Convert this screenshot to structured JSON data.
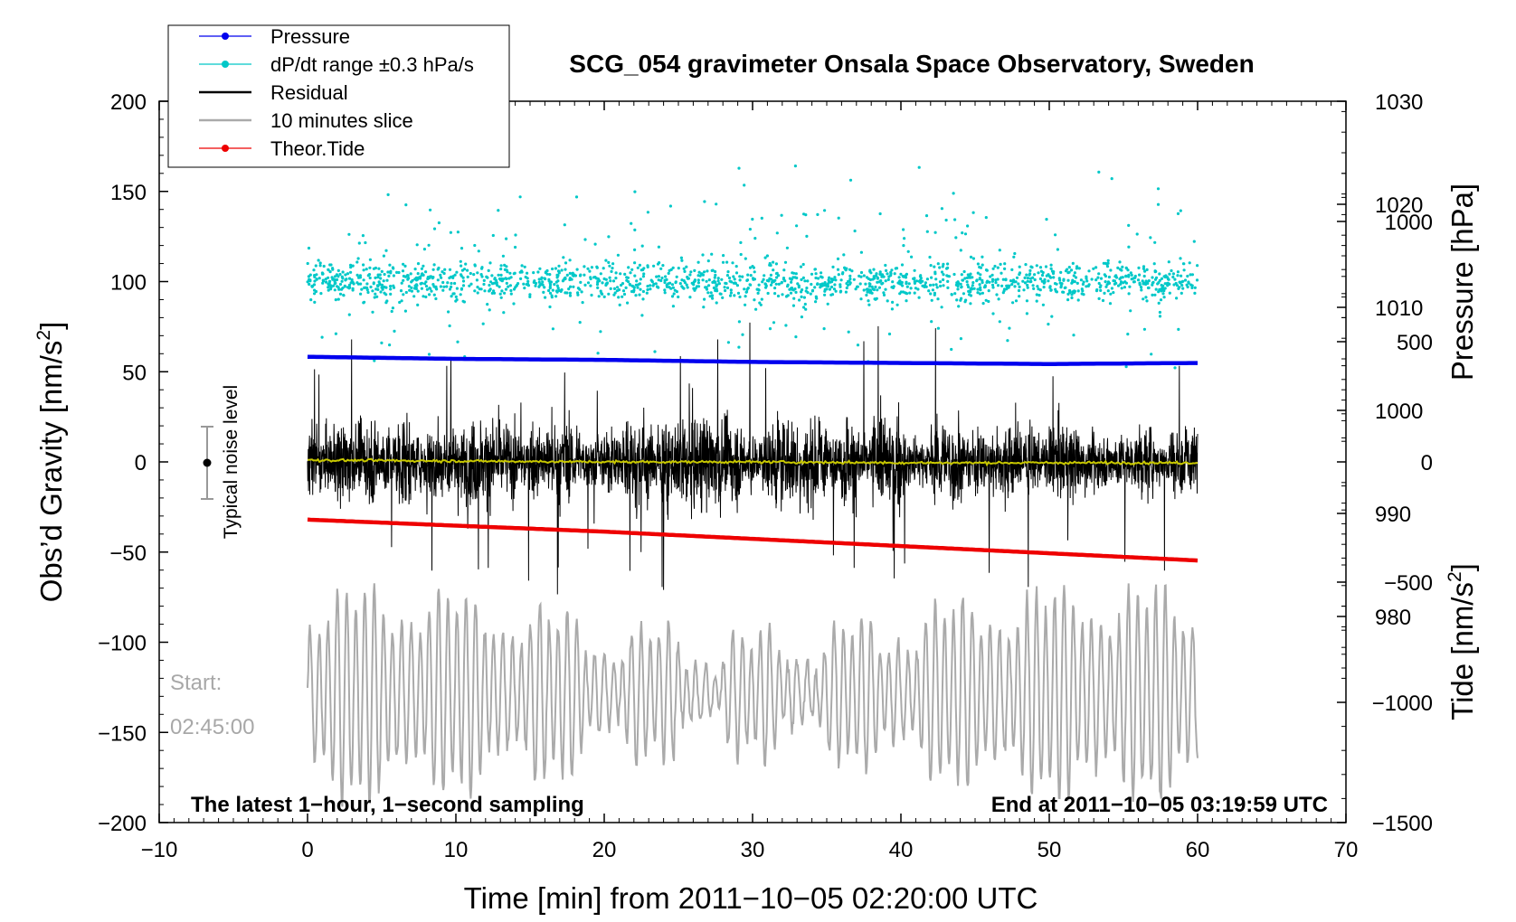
{
  "chart_data": {
    "type": "line",
    "title": "SCG_054 gravimeter Onsala Space Observatory, Sweden",
    "xlabel": "Time [min] from 2011−10−05 02:20:00 UTC",
    "ylabel_left": "Obs’d Gravity [nm/s²]",
    "ylabel_left_base": "Obs’d Gravity [nm/s",
    "ylabel_left_sup": "2",
    "ylabel_left_tail": "]",
    "ylabel_right_pressure": "Pressure [hPa]",
    "ylabel_right_tide": "Tide [nm/s²]",
    "ylabel_right_tide_base": "Tide [nm/s",
    "ylabel_right_tide_sup": "2",
    "ylabel_right_tide_tail": "]",
    "xlim": [
      -10,
      70
    ],
    "ylim_left": [
      -200,
      200
    ],
    "ylim_pressure": [
      960,
      1030
    ],
    "ylim_tide": [
      -1500,
      1500
    ],
    "x_ticks": [
      "−10",
      "0",
      "10",
      "20",
      "30",
      "40",
      "50",
      "60",
      "70"
    ],
    "x_tick_values": [
      -10,
      0,
      10,
      20,
      30,
      40,
      50,
      60,
      70
    ],
    "y_ticks_left": [
      "200",
      "150",
      "100",
      "50",
      "0",
      "−50",
      "−100",
      "−150",
      "−200"
    ],
    "y_tick_values_left": [
      200,
      150,
      100,
      50,
      0,
      -50,
      -100,
      -150,
      -200
    ],
    "pressure_ticks": [
      "1030",
      "1020",
      "1010",
      "1000",
      "990",
      "980"
    ],
    "pressure_tick_values": [
      1030,
      1020,
      1010,
      1000,
      990,
      980
    ],
    "tide_ticks": [
      "1000",
      "500",
      "0",
      "−500",
      "−1000",
      "−1500"
    ],
    "tide_tick_values": [
      1000,
      500,
      0,
      -500,
      -1000,
      -1500
    ],
    "legend_position": "top-left",
    "legend": [
      {
        "label": "Pressure",
        "color": "#0000ee",
        "marker": true
      },
      {
        "label": "dP/dt range ±0.3 hPa/s",
        "color": "#00c8c8",
        "marker": true
      },
      {
        "label": "Residual",
        "color": "#000000",
        "marker": false
      },
      {
        "label": "10 minutes slice",
        "color": "#aaaaaa",
        "marker": false
      },
      {
        "label": "Theor.Tide",
        "color": "#ee0000",
        "marker": true
      }
    ],
    "series": [
      {
        "name": "Pressure",
        "axis": "pressure",
        "x_range": [
          0,
          60
        ],
        "values": [
          1005.2,
          1005.0,
          1004.9,
          1004.7,
          1004.6,
          1004.5,
          1004.6
        ]
      },
      {
        "name": "dP/dt range ±0.3 hPa/s",
        "axis": "left",
        "x_range": [
          0,
          60
        ],
        "center": 100,
        "spread": 30
      },
      {
        "name": "Residual",
        "axis": "left",
        "x_range": [
          0,
          60
        ],
        "center": 0,
        "amplitude": 65
      },
      {
        "name": "Residual smoothed",
        "axis": "left",
        "x_range": [
          0,
          60
        ],
        "values": [
          1,
          0.5,
          0,
          0,
          -0.5,
          -0.5,
          -0.5
        ],
        "color": "#c8c800"
      },
      {
        "name": "10 minutes slice",
        "axis": "left",
        "x_range": [
          0,
          60
        ],
        "center": -128,
        "amplitude": 55
      },
      {
        "name": "Theor.Tide",
        "axis": "tide",
        "x_range": [
          0,
          60
        ],
        "values": [
          -240,
          -265,
          -290,
          -320,
          -350,
          -380,
          -410
        ]
      }
    ],
    "annotations": {
      "noise_label": "Typical noise level",
      "noise_level": [
        -20,
        20
      ],
      "start_label": "Start:",
      "start_time": "02:45:00",
      "bottom_left": "The latest 1−hour, 1−second sampling",
      "bottom_right": "End at 2011−10−05 03:19:59 UTC"
    }
  }
}
